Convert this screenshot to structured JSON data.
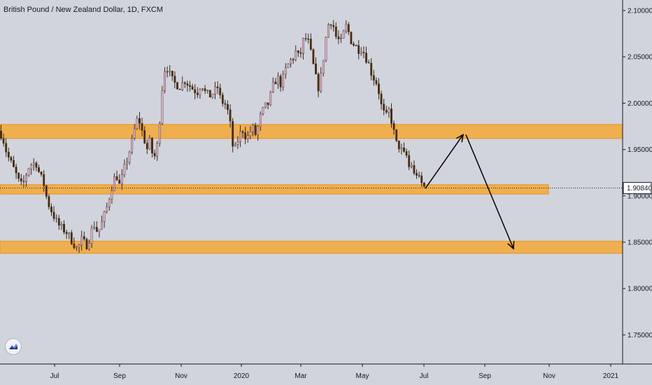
{
  "header": {
    "title": "British Pound / New Zealand Dollar, 1D, FXCM"
  },
  "colors": {
    "background": "#d1d4dc",
    "zone_fill": "#f5a836",
    "zone_border": "#e8901a",
    "candle_up": "#e0b0d0",
    "candle_down": "#4a2a08",
    "wick": "#3a2a1a",
    "arrow": "#000000"
  },
  "chart_data": {
    "type": "candlestick",
    "symbol": "British Pound / New Zealand Dollar",
    "interval": "1D",
    "source": "FXCM",
    "ylim": [
      1.715,
      2.113
    ],
    "x_ticks": [
      "Jul",
      "Sep",
      "Nov",
      "2020",
      "Mar",
      "May",
      "Jul",
      "Sep",
      "Nov",
      "2021"
    ],
    "y_ticks": [
      "2.10000",
      "2.05000",
      "2.00000",
      "1.95000",
      "1.90000",
      "1.85000",
      "1.80000",
      "1.75000"
    ],
    "last_price": "1.90840",
    "zones": [
      {
        "low": 1.962,
        "high": 1.977
      },
      {
        "low": 1.902,
        "high": 1.912
      },
      {
        "low": 1.838,
        "high": 1.851
      }
    ],
    "close_path": [
      [
        0,
        1.97
      ],
      [
        5,
        1.96
      ],
      [
        10,
        1.945
      ],
      [
        16,
        1.935
      ],
      [
        22,
        1.925
      ],
      [
        27,
        1.915
      ],
      [
        32,
        1.91
      ],
      [
        36,
        1.92
      ],
      [
        40,
        1.93
      ],
      [
        46,
        1.935
      ],
      [
        52,
        1.935
      ],
      [
        57,
        1.922
      ],
      [
        62,
        1.915
      ],
      [
        66,
        1.9
      ],
      [
        70,
        1.89
      ],
      [
        76,
        1.88
      ],
      [
        82,
        1.87
      ],
      [
        88,
        1.865
      ],
      [
        94,
        1.862
      ],
      [
        100,
        1.855
      ],
      [
        106,
        1.848
      ],
      [
        110,
        1.843
      ],
      [
        114,
        1.847
      ],
      [
        118,
        1.855
      ],
      [
        122,
        1.845
      ],
      [
        126,
        1.85
      ],
      [
        130,
        1.86
      ],
      [
        134,
        1.87
      ],
      [
        140,
        1.86
      ],
      [
        146,
        1.872
      ],
      [
        152,
        1.885
      ],
      [
        158,
        1.905
      ],
      [
        162,
        1.915
      ],
      [
        166,
        1.925
      ],
      [
        170,
        1.91
      ],
      [
        174,
        1.918
      ],
      [
        178,
        1.93
      ],
      [
        184,
        1.945
      ],
      [
        190,
        1.962
      ],
      [
        194,
        1.978
      ],
      [
        198,
        1.985
      ],
      [
        202,
        1.972
      ],
      [
        206,
        1.962
      ],
      [
        210,
        1.95
      ],
      [
        214,
        1.958
      ],
      [
        218,
        1.945
      ],
      [
        222,
        1.942
      ],
      [
        226,
        1.96
      ],
      [
        230,
        2.0
      ],
      [
        234,
        2.035
      ],
      [
        238,
        2.04
      ],
      [
        243,
        2.03
      ],
      [
        248,
        2.022
      ],
      [
        253,
        2.02
      ],
      [
        258,
        2.018
      ],
      [
        264,
        2.025
      ],
      [
        270,
        2.02
      ],
      [
        276,
        2.015
      ],
      [
        282,
        2.012
      ],
      [
        288,
        2.022
      ],
      [
        294,
        2.01
      ],
      [
        300,
        2.008
      ],
      [
        306,
        2.012
      ],
      [
        312,
        2.018
      ],
      [
        316,
        2.0
      ],
      [
        320,
        2.002
      ],
      [
        324,
        1.995
      ],
      [
        328,
        1.985
      ],
      [
        332,
        1.955
      ],
      [
        336,
        1.95
      ],
      [
        340,
        1.96
      ],
      [
        344,
        1.968
      ],
      [
        348,
        1.972
      ],
      [
        352,
        1.962
      ],
      [
        356,
        1.965
      ],
      [
        360,
        1.975
      ],
      [
        366,
        1.965
      ],
      [
        372,
        1.985
      ],
      [
        378,
        1.995
      ],
      [
        384,
        2.0
      ],
      [
        390,
        2.018
      ],
      [
        396,
        2.028
      ],
      [
        402,
        2.02
      ],
      [
        408,
        2.035
      ],
      [
        414,
        2.045
      ],
      [
        420,
        2.05
      ],
      [
        424,
        2.058
      ],
      [
        428,
        2.045
      ],
      [
        432,
        2.065
      ],
      [
        436,
        2.07
      ],
      [
        440,
        2.068
      ],
      [
        444,
        2.055
      ],
      [
        448,
        2.04
      ],
      [
        452,
        2.025
      ],
      [
        456,
        2.015
      ],
      [
        460,
        2.035
      ],
      [
        464,
        2.06
      ],
      [
        468,
        2.082
      ],
      [
        472,
        2.09
      ],
      [
        476,
        2.085
      ],
      [
        480,
        2.072
      ],
      [
        484,
        2.068
      ],
      [
        488,
        2.065
      ],
      [
        492,
        2.078
      ],
      [
        496,
        2.085
      ],
      [
        500,
        2.07
      ],
      [
        504,
        2.065
      ],
      [
        508,
        2.062
      ],
      [
        512,
        2.058
      ],
      [
        516,
        2.06
      ],
      [
        520,
        2.055
      ],
      [
        524,
        2.048
      ],
      [
        528,
        2.04
      ],
      [
        532,
        2.03
      ],
      [
        536,
        2.025
      ],
      [
        540,
        2.02
      ],
      [
        544,
        2.0
      ],
      [
        548,
        1.99
      ],
      [
        552,
        1.985
      ],
      [
        556,
        1.992
      ],
      [
        560,
        1.98
      ],
      [
        564,
        1.965
      ],
      [
        568,
        1.952
      ],
      [
        572,
        1.955
      ],
      [
        576,
        1.942
      ],
      [
        580,
        1.948
      ],
      [
        584,
        1.93
      ],
      [
        588,
        1.935
      ],
      [
        592,
        1.922
      ],
      [
        596,
        1.925
      ],
      [
        600,
        1.915
      ],
      [
        604,
        1.912
      ],
      [
        608,
        1.908
      ]
    ],
    "annotation_arrows": [
      {
        "points": [
          [
            608,
            1.908
          ],
          [
            662,
            1.966
          ]
        ],
        "arrowhead": true
      },
      {
        "points": [
          [
            666,
            1.966
          ],
          [
            734,
            1.843
          ]
        ],
        "arrowhead": true
      }
    ]
  }
}
